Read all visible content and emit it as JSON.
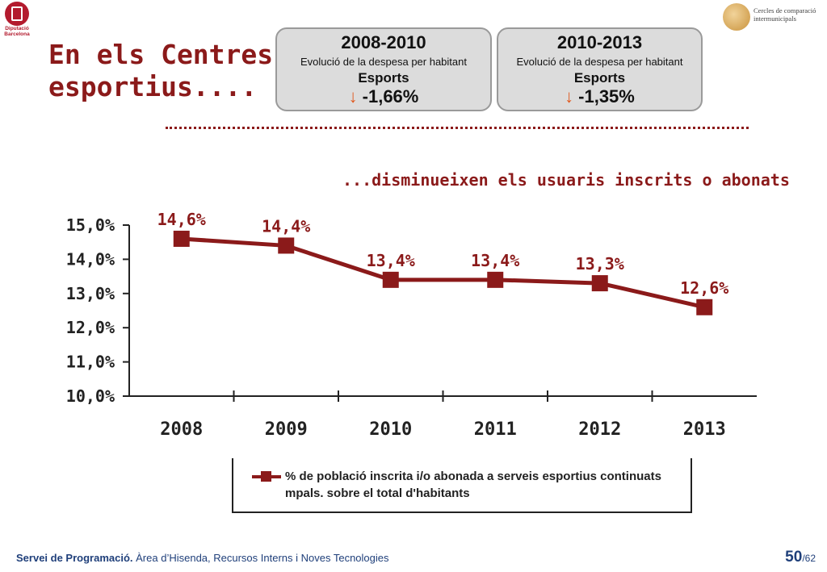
{
  "header": {
    "logo_left_text": [
      "Diputació",
      "Barcelona"
    ],
    "logo_right_text": [
      "Cercles de comparació",
      "intermunicipals"
    ],
    "title": "En els Centres\nesportius...."
  },
  "boxes": [
    {
      "period": "2008-2010",
      "desc": "Evolució de la despesa per habitant",
      "sector": "Esports",
      "change": "-1,66%",
      "arrow_icon": "arrow-down-icon"
    },
    {
      "period": "2010-2013",
      "desc": "Evolució de la despesa per habitant",
      "sector": "Esports",
      "change": "-1,35%",
      "arrow_icon": "arrow-down-icon"
    }
  ],
  "colors": {
    "accent": "#8b1a1a",
    "arrow": "#e0571c",
    "box_bg": "#dcdcdc",
    "footer": "#1f3f7a"
  },
  "chart_data": {
    "type": "line",
    "title": "...disminueixen els usuaris inscrits o abonats",
    "categories": [
      "2008",
      "2009",
      "2010",
      "2011",
      "2012",
      "2013"
    ],
    "series": [
      {
        "name": "% de població inscrita i/o abonada a serveis esportius continuats mpals. sobre el total d'habitants",
        "values": [
          14.6,
          14.4,
          13.4,
          13.4,
          13.3,
          12.6
        ],
        "labels": [
          "14,6%",
          "14,4%",
          "13,4%",
          "13,4%",
          "13,3%",
          "12,6%"
        ]
      }
    ],
    "y_ticks": [
      "10,0%",
      "11,0%",
      "12,0%",
      "13,0%",
      "14,0%",
      "15,0%"
    ],
    "ylim": [
      10,
      15
    ],
    "grid": false,
    "legend_position": "bottom"
  },
  "footer": {
    "label_bold": "Servei de Programació.",
    "label_rest": "Àrea d’Hisenda, Recursos Interns i Noves Tecnologies",
    "page": "50",
    "total": "/62"
  }
}
